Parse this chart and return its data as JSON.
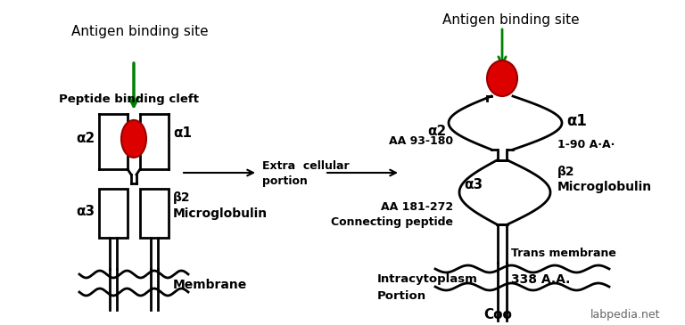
{
  "bg_color": "#ffffff",
  "text_color": "#000000",
  "green_color": "#008000",
  "red_color": "#dd0000",
  "figsize": [
    7.68,
    3.65
  ],
  "dpi": 100,
  "left_title": "Antigen binding site",
  "right_title": "Antigen binding site",
  "left_labels": {
    "peptide_binding_cleft": "Peptide binding cleft",
    "alpha2": "α2",
    "alpha1": "α1",
    "alpha3": "α3",
    "beta2": "β2",
    "microglobulin": "Microglobulin",
    "membrane": "Membrane"
  },
  "right_labels": {
    "alpha2": "α2",
    "alpha1": "α1",
    "alpha3": "α3",
    "beta2": "β2",
    "microglobulin": "Microglobulin",
    "aa93": "AA 93-180",
    "aa181_line1": "AA 181-272",
    "aa181_line2": "Connecting peptide",
    "aa1_90": "1-90 A·A·",
    "trans_membrane": "Trans membrane",
    "intracytoplasm_line1": "Intracytoplasm",
    "intracytoplasm_line2": "Portion",
    "aa338": "338 A.A.",
    "coo": "Coo",
    "watermark": "labpedia.net",
    "extra_cellular_line1": "Extra  cellular",
    "extra_cellular_line2": "portion"
  }
}
